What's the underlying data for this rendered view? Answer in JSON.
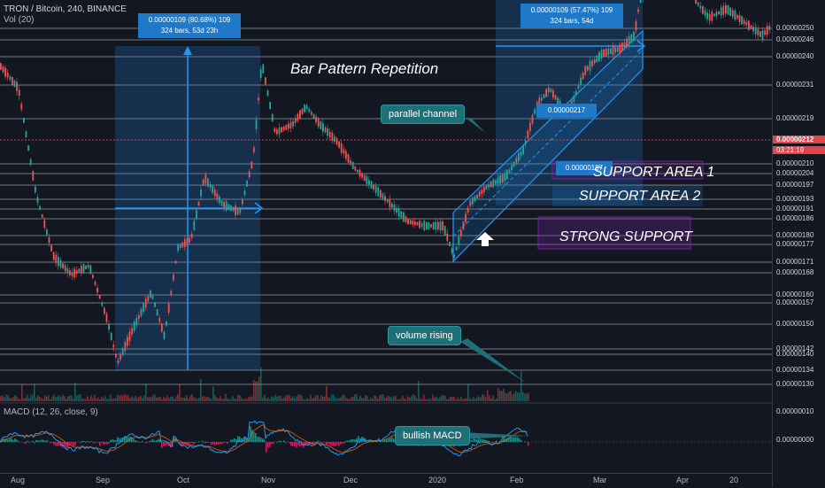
{
  "header": {
    "symbol": "TRON / Bitcoin, 240, BINANCE",
    "volume_label": "Vol (20)",
    "macd_label": "MACD (12, 26, close, 9)"
  },
  "annotations": {
    "title": "Bar Pattern Repetition",
    "parallel_channel": "parallel channel",
    "volume_rising": "volume rising",
    "bullish_macd": "bullish MACD",
    "support1": "SUPPORT AREA 1",
    "support2": "SUPPORT AREA 2",
    "strong_support": "STRONG SUPPORT",
    "measure_left_line1": "0.00000109 (80.68%) 109",
    "measure_left_line2": "324 bars, 53d 23h",
    "measure_right_line1": "0.00000109 (57.47%) 109",
    "measure_right_line2": "324 bars, 54d",
    "channel_price_label": "0.00000217",
    "channel_price_label2": "0.00000187"
  },
  "price_axis": {
    "labels": [
      "0.00000250",
      "0.00000246",
      "0.00000240",
      "0.00000231",
      "0.00000219",
      "0.00000210",
      "0.00000204",
      "0.00000197",
      "0.00000193",
      "0.00000191",
      "0.00000186",
      "0.00000180",
      "0.00000177",
      "0.00000171",
      "0.00000168",
      "0.00000160",
      "0.00000157",
      "0.00000150",
      "0.00000142",
      "0.00000140",
      "0.00000134",
      "0.00000130"
    ],
    "current_price": "0.00000212",
    "countdown": "03:21:19",
    "macd_labels": [
      "0.00000010",
      "0.00000000"
    ]
  },
  "time_axis": {
    "labels": [
      "Aug",
      "Sep",
      "Oct",
      "Nov",
      "Dec",
      "2020",
      "Feb",
      "Mar",
      "Apr",
      "20"
    ]
  },
  "colors": {
    "background": "#131722",
    "up": "#26a69a",
    "down": "#ef5350",
    "channel": "#1e88e5",
    "support_box": "#7b1fa2",
    "callout": "#1e6f78"
  }
}
